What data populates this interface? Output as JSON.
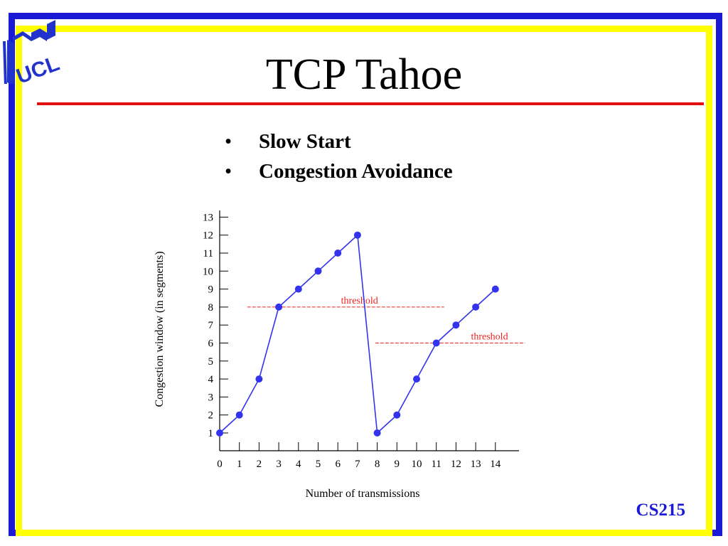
{
  "slide": {
    "logo_text": "UCLA",
    "title": "TCP Tahoe",
    "bullets": [
      "Slow Start",
      "Congestion Avoidance"
    ],
    "course": "CS215"
  },
  "colors": {
    "frame_outer": "#1a1ad6",
    "frame_inner": "#ffff00",
    "title_rule": "#e01010",
    "series": "#3333ee",
    "threshold": "#ee2222"
  },
  "chart_data": {
    "type": "line",
    "xlabel": "Number of transmissions",
    "ylabel": "Congestion window (in segments)",
    "xlim": [
      0,
      14
    ],
    "ylim": [
      1,
      13
    ],
    "x_ticks": [
      0,
      1,
      2,
      3,
      4,
      5,
      6,
      7,
      8,
      9,
      10,
      11,
      12,
      13,
      14
    ],
    "y_ticks": [
      1,
      2,
      3,
      4,
      5,
      6,
      7,
      8,
      9,
      10,
      11,
      12,
      13
    ],
    "grid": false,
    "series": [
      {
        "x": [
          0,
          1,
          2,
          3,
          4,
          5,
          6,
          7,
          8,
          9,
          10,
          11,
          12,
          13,
          14
        ],
        "y": [
          1,
          2,
          4,
          8,
          9,
          10,
          11,
          12,
          1,
          2,
          4,
          6,
          7,
          8,
          9
        ]
      }
    ],
    "thresholds": [
      {
        "label": "threshold",
        "y": 8,
        "x_from": 1.4,
        "x_to": 11.4
      },
      {
        "label": "threshold",
        "y": 6,
        "x_from": 7.9,
        "x_to": 15.5
      }
    ]
  }
}
